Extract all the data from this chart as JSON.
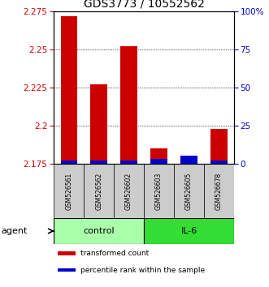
{
  "title": "GDS3773 / 10552562",
  "samples": [
    "GSM526561",
    "GSM526562",
    "GSM526602",
    "GSM526603",
    "GSM526605",
    "GSM526678"
  ],
  "red_values": [
    2.272,
    2.227,
    2.252,
    2.185,
    2.1755,
    2.198
  ],
  "blue_percentiles": [
    2.0,
    2.0,
    2.0,
    3.0,
    5.0,
    2.0
  ],
  "baseline": 2.175,
  "ylim_left": [
    2.175,
    2.275
  ],
  "ylim_right": [
    0,
    100
  ],
  "yticks_left": [
    2.175,
    2.2,
    2.225,
    2.25,
    2.275
  ],
  "ytick_labels_left": [
    "2.175",
    "2.2",
    "2.225",
    "2.25",
    "2.275"
  ],
  "yticks_right": [
    0,
    25,
    50,
    75,
    100
  ],
  "ytick_labels_right": [
    "0",
    "25",
    "50",
    "75",
    "100%"
  ],
  "groups": [
    {
      "label": "control",
      "start": 0,
      "end": 2,
      "color": "#aaffaa"
    },
    {
      "label": "IL-6",
      "start": 3,
      "end": 5,
      "color": "#33dd33"
    }
  ],
  "red_color": "#cc0000",
  "blue_color": "#0000cc",
  "bar_width": 0.55,
  "sample_bg_color": "#cccccc",
  "agent_label": "agent",
  "legend_items": [
    {
      "color": "#cc0000",
      "label": "transformed count"
    },
    {
      "color": "#0000cc",
      "label": "percentile rank within the sample"
    }
  ],
  "title_fontsize": 10,
  "tick_fontsize": 7.5,
  "sample_fontsize": 5.5,
  "group_fontsize": 8,
  "legend_fontsize": 6.5
}
